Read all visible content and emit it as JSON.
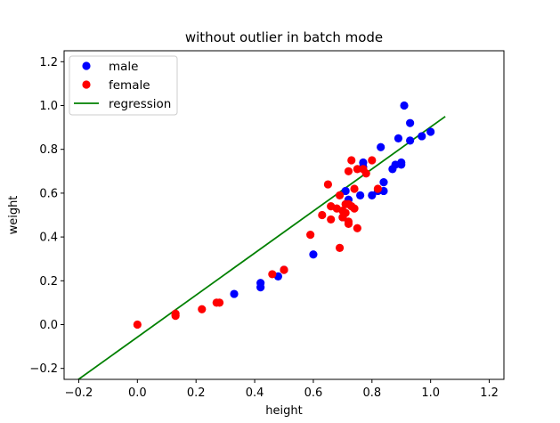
{
  "chart_data": {
    "type": "scatter",
    "title": "without outlier in batch mode",
    "xlabel": "height",
    "ylabel": "weight",
    "xlim": [
      -0.25,
      1.25
    ],
    "ylim": [
      -0.25,
      1.25
    ],
    "xticks": [
      -0.2,
      0.0,
      0.2,
      0.4,
      0.6,
      0.8,
      1.0,
      1.2
    ],
    "yticks": [
      -0.2,
      0.0,
      0.2,
      0.4,
      0.6,
      0.8,
      1.0,
      1.2
    ],
    "xtick_labels": [
      "−0.2",
      "0.0",
      "0.2",
      "0.4",
      "0.6",
      "0.8",
      "1.0",
      "1.2"
    ],
    "ytick_labels": [
      "−0.2",
      "0.0",
      "0.2",
      "0.4",
      "0.6",
      "0.8",
      "1.0",
      "1.2"
    ],
    "legend": {
      "position": "upper-left",
      "entries": [
        {
          "label": "male",
          "marker": "dot",
          "color": "#0000ff"
        },
        {
          "label": "female",
          "marker": "dot",
          "color": "#ff0000"
        },
        {
          "label": "regression",
          "marker": "line",
          "color": "#008000"
        }
      ]
    },
    "series": [
      {
        "name": "male",
        "type": "scatter",
        "color": "#0000ff",
        "points": [
          [
            0.33,
            0.14
          ],
          [
            0.42,
            0.17
          ],
          [
            0.42,
            0.19
          ],
          [
            0.48,
            0.22
          ],
          [
            0.5,
            0.25
          ],
          [
            0.6,
            0.32
          ],
          [
            0.7,
            0.49
          ],
          [
            0.71,
            0.61
          ],
          [
            0.72,
            0.57
          ],
          [
            0.76,
            0.59
          ],
          [
            0.77,
            0.72
          ],
          [
            0.77,
            0.74
          ],
          [
            0.8,
            0.59
          ],
          [
            0.82,
            0.61
          ],
          [
            0.83,
            0.81
          ],
          [
            0.84,
            0.61
          ],
          [
            0.84,
            0.65
          ],
          [
            0.87,
            0.71
          ],
          [
            0.88,
            0.73
          ],
          [
            0.89,
            0.85
          ],
          [
            0.9,
            0.74
          ],
          [
            0.9,
            0.73
          ],
          [
            0.91,
            1.0
          ],
          [
            0.93,
            0.84
          ],
          [
            0.93,
            0.92
          ],
          [
            0.97,
            0.86
          ],
          [
            1.0,
            0.88
          ]
        ]
      },
      {
        "name": "female",
        "type": "scatter",
        "color": "#ff0000",
        "points": [
          [
            0.0,
            0.0
          ],
          [
            0.13,
            0.04
          ],
          [
            0.13,
            0.05
          ],
          [
            0.22,
            0.07
          ],
          [
            0.27,
            0.1
          ],
          [
            0.28,
            0.1
          ],
          [
            0.46,
            0.23
          ],
          [
            0.5,
            0.25
          ],
          [
            0.59,
            0.41
          ],
          [
            0.63,
            0.5
          ],
          [
            0.65,
            0.64
          ],
          [
            0.66,
            0.54
          ],
          [
            0.66,
            0.48
          ],
          [
            0.68,
            0.53
          ],
          [
            0.69,
            0.35
          ],
          [
            0.69,
            0.59
          ],
          [
            0.7,
            0.49
          ],
          [
            0.7,
            0.52
          ],
          [
            0.71,
            0.55
          ],
          [
            0.71,
            0.51
          ],
          [
            0.72,
            0.47
          ],
          [
            0.72,
            0.55
          ],
          [
            0.72,
            0.46
          ],
          [
            0.72,
            0.7
          ],
          [
            0.73,
            0.54
          ],
          [
            0.73,
            0.75
          ],
          [
            0.74,
            0.53
          ],
          [
            0.74,
            0.62
          ],
          [
            0.75,
            0.71
          ],
          [
            0.75,
            0.44
          ],
          [
            0.77,
            0.71
          ],
          [
            0.78,
            0.69
          ],
          [
            0.8,
            0.75
          ],
          [
            0.82,
            0.62
          ]
        ]
      },
      {
        "name": "regression",
        "type": "line",
        "color": "#008000",
        "points": [
          [
            -0.25,
            -0.297
          ],
          [
            1.05,
            0.95
          ]
        ]
      }
    ]
  }
}
